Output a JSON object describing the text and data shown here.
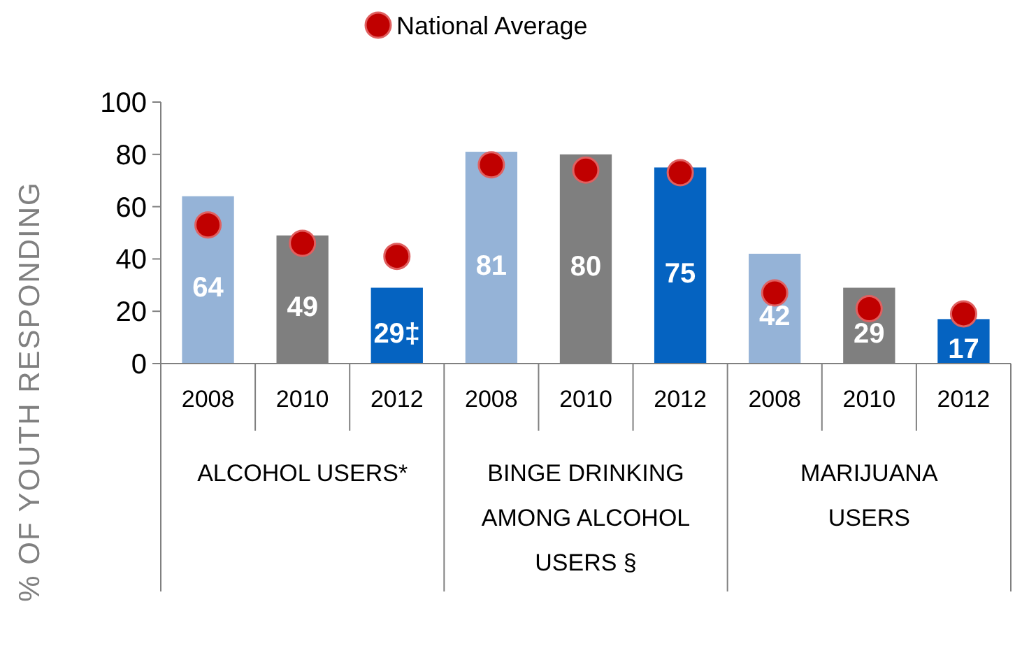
{
  "chart_data": {
    "type": "bar",
    "ylabel": "% OF YOUTH RESPONDING",
    "categories": [
      "2008",
      "2010",
      "2012",
      "2008",
      "2010",
      "2012",
      "2008",
      "2010",
      "2012"
    ],
    "ylim": [
      0,
      100
    ],
    "yticks": [
      0,
      20,
      40,
      60,
      80,
      100
    ],
    "legend": "top",
    "grid": false,
    "series": [
      {
        "colors": [
          "#95b3d7",
          "#7f7f7f",
          "#0563c1",
          "#95b3d7",
          "#7f7f7f",
          "#0563c1",
          "#95b3d7",
          "#7f7f7f",
          "#0563c1"
        ],
        "values": [
          64,
          49,
          29,
          81,
          80,
          75,
          42,
          29,
          17
        ],
        "value_labels": [
          "64",
          "49",
          "29‡",
          "81",
          "80",
          "75",
          "42",
          "29",
          "17"
        ]
      },
      {
        "type": "scatter",
        "name": "National Average",
        "color": "#c00000",
        "marker": "circle",
        "values": [
          53,
          46,
          41,
          76,
          74,
          73,
          27,
          21,
          19
        ]
      }
    ],
    "annotations": [
      "ALCOHOL USERS*",
      "BINGE DRINKING AMONG ALCOHOL USERS §",
      "MARIJUANA USERS"
    ]
  }
}
